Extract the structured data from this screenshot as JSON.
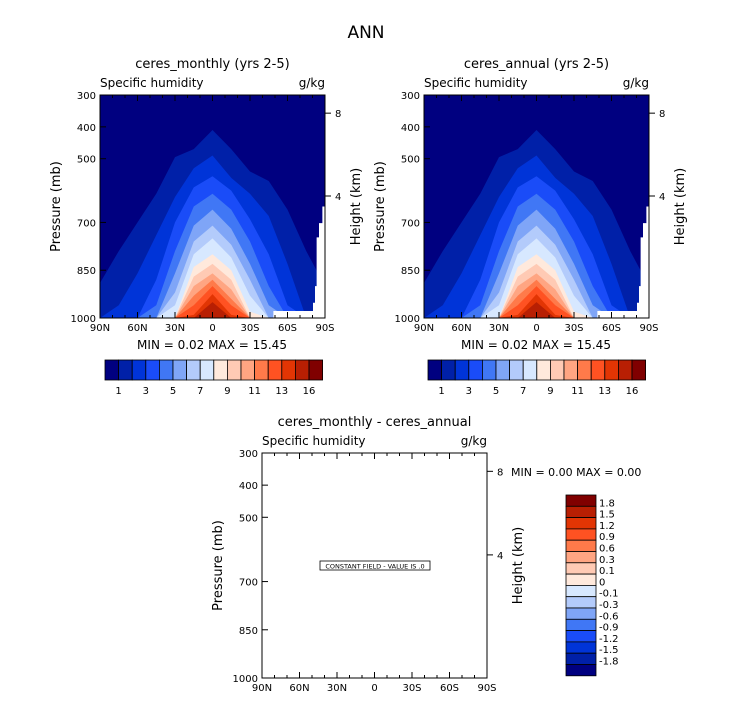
{
  "main_title": "ANN",
  "colors": [
    "#000080",
    "#0020a8",
    "#0034d8",
    "#1a4cf8",
    "#4077f5",
    "#7fa5f7",
    "#b3cbfb",
    "#d7e8ff",
    "#ffe9dc",
    "#ffcab4",
    "#ffa582",
    "#ff7a4a",
    "#ff5222",
    "#e23504",
    "#b81f03",
    "#800000"
  ],
  "chart_data": [
    {
      "type": "contour",
      "title": "ceres_monthly (yrs 2-5)",
      "left_string": "Specific humidity",
      "right_string": "g/kg",
      "ylabel": "Pressure (mb)",
      "ylabel_right": "Height (km)",
      "ylim": [
        300,
        1000
      ],
      "y_ticks": [
        300,
        400,
        500,
        700,
        850,
        1000
      ],
      "right_ticks": [
        {
          "label": "8",
          "pressure": 357
        },
        {
          "label": "4",
          "pressure": 617
        }
      ],
      "x_ticks": [
        {
          "label": "90N",
          "lat": 90
        },
        {
          "label": "60N",
          "lat": 60
        },
        {
          "label": "30N",
          "lat": 30
        },
        {
          "label": "0",
          "lat": 0
        },
        {
          "label": "30S",
          "lat": -30
        },
        {
          "label": "60S",
          "lat": -60
        },
        {
          "label": "90S",
          "lat": -90
        }
      ],
      "minmax_text": "MIN =    0.02   MAX =   15.45",
      "min": 0.02,
      "max": 15.45,
      "contour_lats": [
        90,
        75,
        60,
        45,
        30,
        15,
        0,
        -15,
        -30,
        -45,
        -60,
        -75,
        -90
      ],
      "contour_levels": [
        [
          890,
          790,
          700,
          610,
          495,
          470,
          410,
          470,
          540,
          570,
          660,
          790,
          900
        ],
        [
          1000,
          960,
          860,
          740,
          620,
          530,
          490,
          560,
          610,
          680,
          830,
          1000,
          1000
        ],
        [
          1000,
          1000,
          1000,
          880,
          700,
          590,
          555,
          600,
          690,
          800,
          960,
          1000,
          1000
        ],
        [
          1000,
          1000,
          1000,
          960,
          790,
          650,
          610,
          660,
          760,
          900,
          1000,
          1000,
          1000
        ],
        [
          1000,
          1000,
          1000,
          1000,
          860,
          710,
          660,
          720,
          830,
          960,
          1000,
          1000,
          1000
        ],
        [
          1000,
          1000,
          1000,
          1000,
          920,
          760,
          710,
          770,
          880,
          1000,
          1000,
          1000,
          1000
        ],
        [
          1000,
          1000,
          1000,
          1000,
          960,
          800,
          750,
          810,
          930,
          1000,
          1000,
          1000,
          1000
        ],
        [
          1000,
          1000,
          1000,
          1000,
          1000,
          840,
          800,
          850,
          980,
          1000,
          1000,
          1000,
          1000
        ],
        [
          1000,
          1000,
          1000,
          1000,
          1000,
          870,
          830,
          880,
          1000,
          1000,
          1000,
          1000,
          1000
        ],
        [
          1000,
          1000,
          1000,
          1000,
          1000,
          900,
          860,
          910,
          1000,
          1000,
          1000,
          1000,
          1000
        ],
        [
          1000,
          1000,
          1000,
          1000,
          1000,
          930,
          880,
          940,
          1000,
          1000,
          1000,
          1000,
          1000
        ],
        [
          1000,
          1000,
          1000,
          1000,
          1000,
          960,
          900,
          960,
          1000,
          1000,
          1000,
          1000,
          1000
        ],
        [
          1000,
          1000,
          1000,
          1000,
          1000,
          990,
          925,
          990,
          1000,
          1000,
          1000,
          1000,
          1000
        ],
        [
          1000,
          1000,
          1000,
          1000,
          1000,
          1000,
          950,
          1000,
          1000,
          1000,
          1000,
          1000,
          1000
        ]
      ],
      "missing_region": [
        [
          -87.9,
          650
        ],
        [
          -90,
          650
        ],
        [
          -90,
          1000
        ],
        [
          -48.7,
          1000
        ],
        [
          -48.7,
          978
        ],
        [
          -80.4,
          978
        ],
        [
          -80.4,
          952
        ],
        [
          -82,
          952
        ],
        [
          -82,
          900
        ],
        [
          -83.3,
          900
        ],
        [
          -83.3,
          747
        ],
        [
          -85.2,
          747
        ],
        [
          -85.2,
          702
        ],
        [
          -87.9,
          702
        ]
      ],
      "colorbar": {
        "orientation": "horizontal",
        "labels": [
          "1",
          "3",
          "5",
          "7",
          "9",
          "11",
          "13",
          "16"
        ]
      }
    },
    {
      "type": "contour",
      "title": "ceres_annual (yrs 2-5)",
      "left_string": "Specific humidity",
      "right_string": "g/kg",
      "ylabel": "Pressure (mb)",
      "ylabel_right": "Height (km)",
      "ylim": [
        300,
        1000
      ],
      "y_ticks": [
        300,
        400,
        500,
        700,
        850,
        1000
      ],
      "right_ticks": [
        {
          "label": "8",
          "pressure": 357
        },
        {
          "label": "4",
          "pressure": 617
        }
      ],
      "x_ticks": [
        {
          "label": "90N",
          "lat": 90
        },
        {
          "label": "60N",
          "lat": 60
        },
        {
          "label": "30N",
          "lat": 30
        },
        {
          "label": "0",
          "lat": 0
        },
        {
          "label": "30S",
          "lat": -30
        },
        {
          "label": "60S",
          "lat": -60
        },
        {
          "label": "90S",
          "lat": -90
        }
      ],
      "minmax_text": "MIN =    0.02   MAX =   15.45",
      "min": 0.02,
      "max": 15.45,
      "contour_lats": [
        90,
        75,
        60,
        45,
        30,
        15,
        0,
        -15,
        -30,
        -45,
        -60,
        -75,
        -90
      ],
      "contour_levels": [
        [
          890,
          790,
          700,
          610,
          495,
          470,
          410,
          470,
          540,
          570,
          660,
          790,
          900
        ],
        [
          1000,
          960,
          860,
          740,
          620,
          530,
          490,
          560,
          610,
          680,
          830,
          1000,
          1000
        ],
        [
          1000,
          1000,
          1000,
          880,
          700,
          590,
          555,
          600,
          690,
          800,
          960,
          1000,
          1000
        ],
        [
          1000,
          1000,
          1000,
          960,
          790,
          650,
          610,
          660,
          760,
          900,
          1000,
          1000,
          1000
        ],
        [
          1000,
          1000,
          1000,
          1000,
          860,
          710,
          660,
          720,
          830,
          960,
          1000,
          1000,
          1000
        ],
        [
          1000,
          1000,
          1000,
          1000,
          920,
          760,
          710,
          770,
          880,
          1000,
          1000,
          1000,
          1000
        ],
        [
          1000,
          1000,
          1000,
          1000,
          960,
          800,
          750,
          810,
          930,
          1000,
          1000,
          1000,
          1000
        ],
        [
          1000,
          1000,
          1000,
          1000,
          1000,
          840,
          800,
          850,
          980,
          1000,
          1000,
          1000,
          1000
        ],
        [
          1000,
          1000,
          1000,
          1000,
          1000,
          870,
          830,
          880,
          1000,
          1000,
          1000,
          1000,
          1000
        ],
        [
          1000,
          1000,
          1000,
          1000,
          1000,
          900,
          860,
          910,
          1000,
          1000,
          1000,
          1000,
          1000
        ],
        [
          1000,
          1000,
          1000,
          1000,
          1000,
          930,
          880,
          940,
          1000,
          1000,
          1000,
          1000,
          1000
        ],
        [
          1000,
          1000,
          1000,
          1000,
          1000,
          960,
          900,
          960,
          1000,
          1000,
          1000,
          1000,
          1000
        ],
        [
          1000,
          1000,
          1000,
          1000,
          1000,
          990,
          925,
          990,
          1000,
          1000,
          1000,
          1000,
          1000
        ],
        [
          1000,
          1000,
          1000,
          1000,
          1000,
          1000,
          950,
          1000,
          1000,
          1000,
          1000,
          1000,
          1000
        ]
      ],
      "missing_region": [
        [
          -87.9,
          650
        ],
        [
          -90,
          650
        ],
        [
          -90,
          1000
        ],
        [
          -48.7,
          1000
        ],
        [
          -48.7,
          978
        ],
        [
          -80.4,
          978
        ],
        [
          -80.4,
          952
        ],
        [
          -82,
          952
        ],
        [
          -82,
          900
        ],
        [
          -83.3,
          900
        ],
        [
          -83.3,
          747
        ],
        [
          -85.2,
          747
        ],
        [
          -85.2,
          702
        ],
        [
          -87.9,
          702
        ]
      ],
      "colorbar": {
        "orientation": "horizontal",
        "labels": [
          "1",
          "3",
          "5",
          "7",
          "9",
          "11",
          "13",
          "16"
        ]
      }
    },
    {
      "type": "contour",
      "title": "ceres_monthly - ceres_annual",
      "left_string": "Specific humidity",
      "right_string": "g/kg",
      "ylabel": "Pressure (mb)",
      "ylabel_right": "Height (km)",
      "ylim": [
        300,
        1000
      ],
      "y_ticks": [
        300,
        400,
        500,
        700,
        850,
        1000
      ],
      "right_ticks": [
        {
          "label": "8",
          "pressure": 357
        },
        {
          "label": "4",
          "pressure": 617
        }
      ],
      "x_ticks": [
        {
          "label": "90N",
          "lat": 90
        },
        {
          "label": "60N",
          "lat": 60
        },
        {
          "label": "30N",
          "lat": 30
        },
        {
          "label": "0",
          "lat": 0
        },
        {
          "label": "30S",
          "lat": -30
        },
        {
          "label": "60S",
          "lat": -60
        },
        {
          "label": "90S",
          "lat": -90
        }
      ],
      "minmax_text": "MIN =    0.00   MAX =    0.00",
      "min": 0.0,
      "max": 0.0,
      "constant_field_text": "CONSTANT FIELD - VALUE IS .0",
      "colorbar": {
        "orientation": "vertical",
        "labels": [
          "1.8",
          "1.5",
          "1.2",
          "0.9",
          "0.6",
          "0.3",
          "0.1",
          "0",
          "-0.1",
          "-0.3",
          "-0.6",
          "-0.9",
          "-1.2",
          "-1.5",
          "-1.8"
        ]
      }
    }
  ]
}
